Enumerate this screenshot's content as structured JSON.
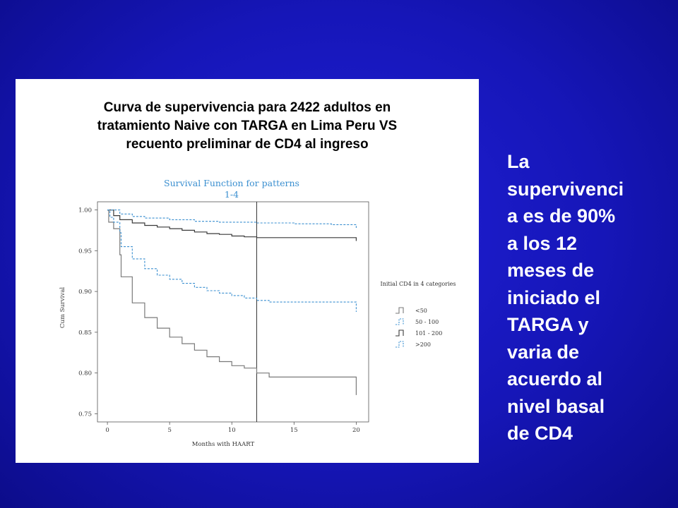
{
  "slide": {
    "title_lines": [
      "Curva de supervivencia para 2422 adultos en",
      "tratamiento Naive con TARGA en Lima Peru VS",
      "recuento preliminar de CD4 al ingreso"
    ],
    "side_text_lines": [
      "La",
      "supervivenci",
      "a es de 90%",
      "a los 12",
      "meses de",
      "iniciado el",
      "TARGA y",
      "varia de",
      "acuerdo al",
      "nivel basal",
      "de CD4"
    ],
    "background_color": "#1818c0",
    "text_color": "#ffffff"
  },
  "chart_data": {
    "type": "line",
    "step": true,
    "title": "Survival Function for patterns",
    "subtitle": "1-4",
    "xlabel": "Months with HAART",
    "ylabel": "Cum Survival",
    "xlim": [
      -0.8,
      21
    ],
    "ylim": [
      0.74,
      1.01
    ],
    "xticks": [
      0,
      5,
      10,
      15,
      20
    ],
    "xtick_labels": [
      "0",
      "5",
      "10",
      "15",
      "20"
    ],
    "yticks": [
      0.75,
      0.8,
      0.85,
      0.9,
      0.95,
      1.0
    ],
    "ytick_labels": [
      "0.75",
      "0.80",
      "0.85",
      "0.90",
      "0.95",
      "1.00"
    ],
    "reference_line_x": 12,
    "grid": false,
    "legend": {
      "title": "Initial CD4 in 4 categories",
      "position": "right"
    },
    "series": [
      {
        "name": "<50",
        "color": "#7a7a7a",
        "dashed": false,
        "points": [
          [
            0,
            1.0
          ],
          [
            0.1,
            0.985
          ],
          [
            0.5,
            0.977
          ],
          [
            1,
            0.945
          ],
          [
            1.1,
            0.918
          ],
          [
            2,
            0.886
          ],
          [
            3,
            0.868
          ],
          [
            4,
            0.855
          ],
          [
            5,
            0.844
          ],
          [
            6,
            0.836
          ],
          [
            7,
            0.828
          ],
          [
            8,
            0.82
          ],
          [
            9,
            0.814
          ],
          [
            10,
            0.809
          ],
          [
            11,
            0.806
          ],
          [
            12,
            0.8
          ],
          [
            13,
            0.795
          ],
          [
            20,
            0.795
          ],
          [
            20,
            0.773
          ]
        ]
      },
      {
        "name": "50 - 100",
        "color": "#3a8fd0",
        "dashed": true,
        "points": [
          [
            0,
            1.0
          ],
          [
            0.2,
            0.991
          ],
          [
            0.5,
            0.985
          ],
          [
            1,
            0.972
          ],
          [
            1.1,
            0.955
          ],
          [
            2,
            0.94
          ],
          [
            3,
            0.928
          ],
          [
            4,
            0.92
          ],
          [
            5,
            0.915
          ],
          [
            6,
            0.91
          ],
          [
            7,
            0.905
          ],
          [
            8,
            0.901
          ],
          [
            9,
            0.898
          ],
          [
            10,
            0.895
          ],
          [
            11,
            0.892
          ],
          [
            12,
            0.889
          ],
          [
            13,
            0.887
          ],
          [
            20,
            0.886
          ],
          [
            20,
            0.875
          ]
        ]
      },
      {
        "name": "101 - 200",
        "color": "#3a3a3a",
        "dashed": false,
        "points": [
          [
            0,
            1.0
          ],
          [
            0.5,
            0.993
          ],
          [
            1,
            0.988
          ],
          [
            2,
            0.984
          ],
          [
            3,
            0.981
          ],
          [
            4,
            0.979
          ],
          [
            5,
            0.977
          ],
          [
            6,
            0.975
          ],
          [
            7,
            0.973
          ],
          [
            8,
            0.971
          ],
          [
            9,
            0.97
          ],
          [
            10,
            0.968
          ],
          [
            11,
            0.967
          ],
          [
            12,
            0.966
          ],
          [
            20,
            0.966
          ],
          [
            20,
            0.962
          ]
        ]
      },
      {
        "name": ">200",
        "color": "#3a8fd0",
        "dashed": true,
        "points": [
          [
            0,
            1.0
          ],
          [
            1,
            0.995
          ],
          [
            2,
            0.992
          ],
          [
            3,
            0.99
          ],
          [
            5,
            0.988
          ],
          [
            7,
            0.986
          ],
          [
            9,
            0.985
          ],
          [
            12,
            0.984
          ],
          [
            15,
            0.983
          ],
          [
            18,
            0.982
          ],
          [
            20,
            0.981
          ],
          [
            20,
            0.978
          ]
        ]
      }
    ]
  }
}
